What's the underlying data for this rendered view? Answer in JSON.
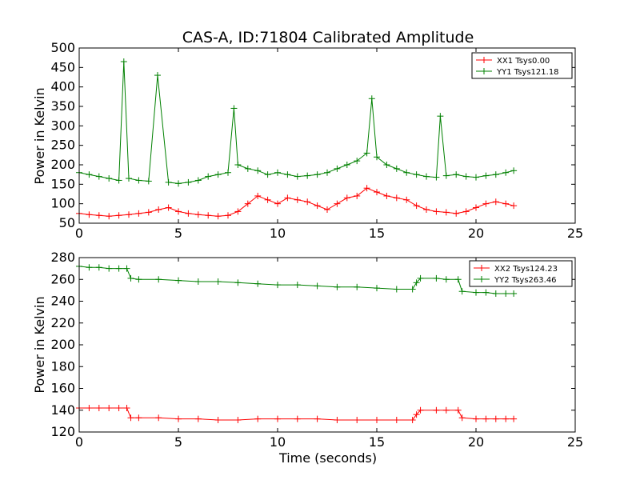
{
  "chart_data": [
    {
      "type": "line",
      "title": "CAS-A, ID:71804 Calibrated Amplitude",
      "xlabel": "",
      "ylabel": "Power in Kelvin",
      "xlim": [
        0,
        25
      ],
      "ylim": [
        50,
        500
      ],
      "xticks": [
        0,
        5,
        10,
        15,
        20,
        25
      ],
      "yticks": [
        50,
        100,
        150,
        200,
        250,
        300,
        350,
        400,
        450,
        500
      ],
      "grid": false,
      "legend": "top-right",
      "marker": "+",
      "series": [
        {
          "name": "XX1 Tsys0.00",
          "color": "#ff0000",
          "x": [
            0,
            0.5,
            1,
            1.5,
            2,
            2.5,
            3,
            3.5,
            4,
            4.5,
            5,
            5.5,
            6,
            6.5,
            7,
            7.5,
            8,
            8.5,
            9,
            9.5,
            10,
            10.5,
            11,
            11.5,
            12,
            12.5,
            13,
            13.5,
            14,
            14.5,
            15,
            15.5,
            16,
            16.5,
            17,
            17.5,
            18,
            18.5,
            19,
            19.5,
            20,
            20.5,
            21,
            21.5,
            21.9
          ],
          "y": [
            75,
            72,
            70,
            68,
            70,
            72,
            75,
            78,
            85,
            90,
            80,
            75,
            72,
            70,
            68,
            70,
            80,
            100,
            120,
            110,
            100,
            115,
            110,
            105,
            95,
            85,
            100,
            115,
            120,
            140,
            130,
            120,
            115,
            110,
            95,
            85,
            80,
            78,
            75,
            80,
            90,
            100,
            105,
            100,
            95
          ]
        },
        {
          "name": "YY1 Tsys121.18",
          "color": "#008000",
          "x": [
            0,
            0.5,
            1,
            1.5,
            2,
            2.25,
            2.5,
            3,
            3.5,
            3.95,
            4.5,
            5,
            5.5,
            6,
            6.5,
            7,
            7.5,
            7.8,
            8,
            8.5,
            9,
            9.5,
            10,
            10.5,
            11,
            11.5,
            12,
            12.5,
            13,
            13.5,
            14,
            14.5,
            14.75,
            15,
            15.5,
            16,
            16.5,
            17,
            17.5,
            18,
            18.2,
            18.5,
            19,
            19.5,
            20,
            20.5,
            21,
            21.5,
            21.9
          ],
          "y": [
            180,
            175,
            170,
            165,
            160,
            465,
            165,
            160,
            158,
            430,
            155,
            152,
            155,
            160,
            170,
            175,
            180,
            345,
            200,
            190,
            185,
            175,
            180,
            175,
            170,
            172,
            175,
            180,
            190,
            200,
            210,
            230,
            370,
            220,
            200,
            190,
            180,
            175,
            170,
            168,
            325,
            172,
            175,
            170,
            168,
            172,
            175,
            180,
            185
          ]
        }
      ]
    },
    {
      "type": "line",
      "title": "",
      "xlabel": "Time (seconds)",
      "ylabel": "Power in Kelvin",
      "xlim": [
        0,
        25
      ],
      "ylim": [
        120,
        280
      ],
      "xticks": [
        0,
        5,
        10,
        15,
        20,
        25
      ],
      "yticks": [
        120,
        140,
        160,
        180,
        200,
        220,
        240,
        260,
        280
      ],
      "grid": false,
      "legend": "top-right",
      "marker": "+",
      "series": [
        {
          "name": "XX2 Tsys124.23",
          "color": "#ff0000",
          "x": [
            0,
            0.5,
            1,
            1.5,
            2,
            2.4,
            2.6,
            3,
            4,
            5,
            6,
            7,
            8,
            9,
            10,
            11,
            12,
            13,
            14,
            15,
            16,
            16.8,
            17,
            17.2,
            18,
            18.5,
            19.1,
            19.3,
            20,
            20.5,
            21,
            21.5,
            21.9
          ],
          "y": [
            142,
            142,
            142,
            142,
            142,
            142,
            133,
            133,
            133,
            132,
            132,
            131,
            131,
            132,
            132,
            132,
            132,
            131,
            131,
            131,
            131,
            131,
            136,
            140,
            140,
            140,
            140,
            133,
            132,
            132,
            132,
            132,
            132
          ]
        },
        {
          "name": "YY2 Tsys263.46",
          "color": "#008000",
          "x": [
            0,
            0.5,
            1,
            1.5,
            2,
            2.4,
            2.6,
            3,
            4,
            5,
            6,
            7,
            8,
            9,
            10,
            11,
            12,
            13,
            14,
            15,
            16,
            16.8,
            17,
            17.2,
            18,
            18.5,
            19.1,
            19.3,
            20,
            20.5,
            21,
            21.5,
            21.9
          ],
          "y": [
            272,
            271,
            271,
            270,
            270,
            270,
            261,
            260,
            260,
            259,
            258,
            258,
            257,
            256,
            255,
            255,
            254,
            253,
            253,
            252,
            251,
            251,
            257,
            261,
            261,
            260,
            260,
            249,
            248,
            248,
            247,
            247,
            247
          ]
        }
      ]
    }
  ]
}
